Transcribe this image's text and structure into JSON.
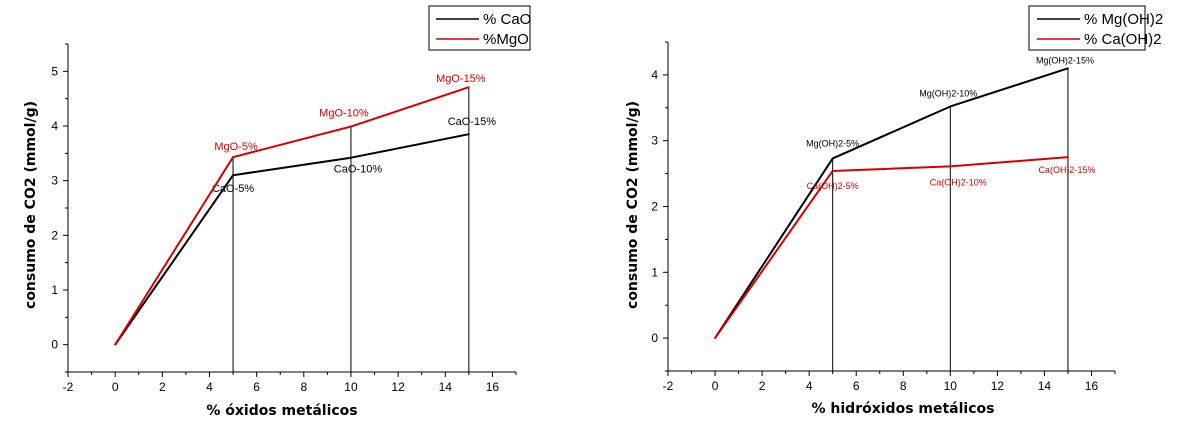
{
  "chart_data": [
    {
      "type": "line",
      "xlabel": "% óxidos metálicos",
      "ylabel": "consumo de CO2 (mmol/g)",
      "xlim": [
        -2,
        17
      ],
      "ylim": [
        -0.5,
        5.5
      ],
      "xticks": [
        "-2",
        "0",
        "2",
        "4",
        "6",
        "8",
        "10",
        "12",
        "14",
        "16"
      ],
      "yticks": [
        "0",
        "1",
        "2",
        "3",
        "4",
        "5"
      ],
      "legend_position": "top-right",
      "series": [
        {
          "name": "% CaO",
          "color": "#000000",
          "x": [
            0,
            5,
            10,
            15
          ],
          "y": [
            0,
            3.1,
            3.42,
            3.85
          ],
          "labels": [
            "",
            "CaO-5%",
            "CaO-10%",
            "CaO-15%"
          ]
        },
        {
          "name": "%MgO",
          "color": "#d40000",
          "x": [
            0,
            5,
            10,
            15
          ],
          "y": [
            0,
            3.43,
            3.99,
            4.71
          ],
          "labels": [
            "",
            "MgO-5%",
            "MgO-10%",
            "MgO-15%"
          ]
        }
      ],
      "droplines_x": [
        5,
        10,
        15
      ]
    },
    {
      "type": "line",
      "xlabel": "% hidróxidos metálicos",
      "ylabel": "consumo de CO2 (mmol/g)",
      "xlim": [
        -2,
        17
      ],
      "ylim": [
        -0.5,
        4.5
      ],
      "xticks": [
        "-2",
        "0",
        "2",
        "4",
        "6",
        "8",
        "10",
        "12",
        "14",
        "16"
      ],
      "yticks": [
        "0",
        "1",
        "2",
        "3",
        "4"
      ],
      "legend_position": "top-right",
      "series": [
        {
          "name": "% Mg(OH)2",
          "color": "#000000",
          "x": [
            0,
            5,
            10,
            15
          ],
          "y": [
            0,
            2.73,
            3.52,
            4.1
          ],
          "labels": [
            "",
            "Mg(OH)2-5%",
            "Mg(OH)2-10%",
            "Mg(OH)2-15%"
          ]
        },
        {
          "name": "% Ca(OH)2",
          "color": "#d40000",
          "x": [
            0,
            5,
            10,
            15
          ],
          "y": [
            0,
            2.54,
            2.61,
            2.75
          ],
          "labels": [
            "",
            "Ca(OH)2-5%",
            "Ca(OH)2-10%",
            "Ca(OH)2-15%"
          ]
        }
      ],
      "droplines_x": [
        5,
        10,
        15
      ]
    }
  ]
}
